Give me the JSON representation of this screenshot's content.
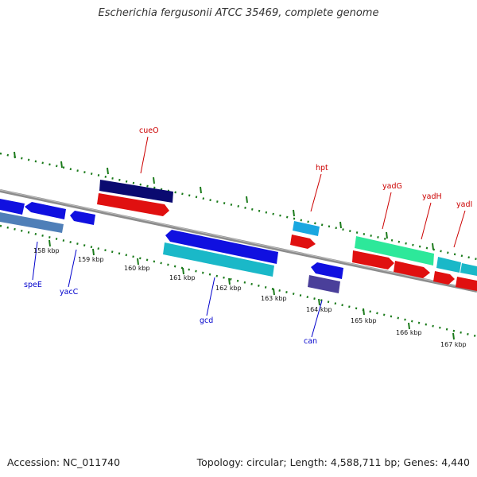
{
  "title": "Escherichia fergusonii ATCC 35469, complete genome",
  "footer": {
    "accession": "Accession: NC_011740",
    "summary": "Topology: circular; Length: 4,588,711 bp; Genes: 4,440"
  },
  "colors": {
    "backbone": "#8c8c8c",
    "label_forward": "#cc0000",
    "label_reverse": "#0000cc",
    "tick": "#1a7a1a"
  },
  "ticks": [
    "158 kbp",
    "159 kbp",
    "160 kbp",
    "161 kbp",
    "162 kbp",
    "163 kbp",
    "164 kbp",
    "165 kbp",
    "166 kbp",
    "167 kbp"
  ],
  "gene_labels": [
    {
      "text": "cueO",
      "strand": "forward"
    },
    {
      "text": "hpt",
      "strand": "forward"
    },
    {
      "text": "yadG",
      "strand": "forward"
    },
    {
      "text": "yadH",
      "strand": "forward"
    },
    {
      "text": "yadI",
      "strand": "forward"
    },
    {
      "text": "speE",
      "strand": "reverse"
    },
    {
      "text": "yacC",
      "strand": "reverse"
    },
    {
      "text": "gcd",
      "strand": "reverse"
    },
    {
      "text": "can",
      "strand": "reverse"
    }
  ]
}
